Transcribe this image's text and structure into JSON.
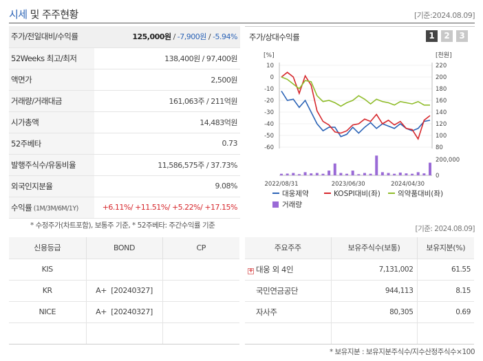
{
  "header": {
    "title_a": "시세",
    "title_b": " 및 주주현황",
    "date": "[기준:2024.08.09]"
  },
  "price_table": {
    "rows": [
      {
        "label": "주가/전일대비/수익률",
        "price": "125,000원",
        "sep1": " / ",
        "change": "-7,900원",
        "sep2": " / ",
        "rate": "-5.94%"
      },
      {
        "label": "52Weeks 최고/최저",
        "value": "138,400원 / 97,400원"
      },
      {
        "label": "액면가",
        "value": "2,500원"
      },
      {
        "label": "거래량/거래대금",
        "value": "161,063주 / 211억원"
      },
      {
        "label": "시가총액",
        "value": "14,483억원"
      },
      {
        "label": "52주베타",
        "value": "0.73"
      },
      {
        "label": "발행주식수/유동비율",
        "value": "11,586,575주 / 37.73%"
      },
      {
        "label": "외국인지분율",
        "value": "9.08%"
      },
      {
        "label": "수익률",
        "label_small": " (1M/3M/6M/1Y)",
        "r1": "+6.11%",
        "r2": "+11.51%",
        "r3": "+5.22%",
        "r4": "+17.15%",
        "slash": "/ "
      }
    ]
  },
  "note_top": "* 수정주가(차트포함), 보통주 기준, * 52주베타: 주간수익률 기준",
  "note_top_date": "[기준: 2024.08.09]",
  "chart": {
    "title": "주가/상대수익률",
    "pages": [
      "1",
      "2",
      "3"
    ],
    "active_page": 0
  },
  "chart_data": {
    "type": "line",
    "left_axis_label": "[%]",
    "right_axis_label": "[천원]",
    "left_ticks": [
      "10",
      "0",
      "-10",
      "-20",
      "-30",
      "-40",
      "-50",
      "-60"
    ],
    "right_ticks": [
      "220",
      "200",
      "180",
      "160",
      "140",
      "120",
      "100",
      "80"
    ],
    "volume_ticks": [
      "200,000",
      "0"
    ],
    "x_ticks": [
      "2022/08/31",
      "2023/06/30",
      "2024/04/30"
    ],
    "left_ylim": [
      -60,
      10
    ],
    "right_ylim": [
      80,
      220
    ],
    "volume_ylim": [
      0,
      200000
    ],
    "series": [
      {
        "name": "대웅제약",
        "color": "#2b63b6",
        "axis": "left",
        "values": [
          -12,
          -20,
          -19,
          -26,
          -20,
          -30,
          -40,
          -46,
          -43,
          -43,
          -51,
          -49,
          -43,
          -48,
          -43,
          -39,
          -44,
          -40,
          -42,
          -44,
          -40,
          -44,
          -46,
          -44,
          -38,
          -37
        ]
      },
      {
        "name": "KOSPI대비(좌)",
        "color": "#d6262b",
        "axis": "left",
        "values": [
          0,
          4,
          0,
          -14,
          1,
          -7,
          -29,
          -38,
          -41,
          -47,
          -48,
          -46,
          -41,
          -40,
          -36,
          -38,
          -32,
          -40,
          -37,
          -41,
          -38,
          -44,
          -45,
          -53,
          -37,
          -33
        ]
      },
      {
        "name": "의약품대비(좌)",
        "color": "#8fbc2a",
        "axis": "left",
        "values": [
          0,
          -2,
          -6,
          -10,
          -3,
          -4,
          -16,
          -21,
          -20,
          -22,
          -25,
          -22,
          -20,
          -16,
          -19,
          -23,
          -19,
          -21,
          -22,
          -24,
          -21,
          -22,
          -23,
          -21,
          -24,
          -24
        ]
      },
      {
        "name": "거래량",
        "color": "#9a6ad6",
        "axis": "volume",
        "values": [
          20000,
          22000,
          30000,
          15000,
          40000,
          25000,
          30000,
          20000,
          60000,
          150000,
          30000,
          20000,
          60000,
          15000,
          30000,
          20000,
          250000,
          40000,
          30000,
          20000,
          35000,
          25000,
          20000,
          40000,
          25000,
          160000
        ]
      }
    ],
    "legend": [
      "대웅제약",
      "KOSPI대비(좌)",
      "의약품대비(좌)",
      "거래량"
    ]
  },
  "credit_table": {
    "headers": [
      "신용등급",
      "BOND",
      "CP"
    ],
    "rows": [
      [
        "KIS",
        "",
        ""
      ],
      [
        "KR",
        "A+  [20240327]",
        ""
      ],
      [
        "NICE",
        "A+  [20240327]",
        ""
      ],
      [
        "",
        "",
        ""
      ]
    ]
  },
  "holder_table": {
    "headers": [
      "주요주주",
      "보유주식수(보통)",
      "보유지분(%)"
    ],
    "rows": [
      {
        "name": "대웅 외 4인",
        "shares": "7,131,002",
        "ratio": "61.55",
        "expandable": true,
        "expand_glyph": "+"
      },
      {
        "name": "국민연금공단",
        "shares": "944,113",
        "ratio": "8.15"
      },
      {
        "name": "자사주",
        "shares": "80,305",
        "ratio": "0.69"
      }
    ]
  },
  "note_bottom": "* 보유지분 : 보유지분주식수/지수산정주식수×100"
}
